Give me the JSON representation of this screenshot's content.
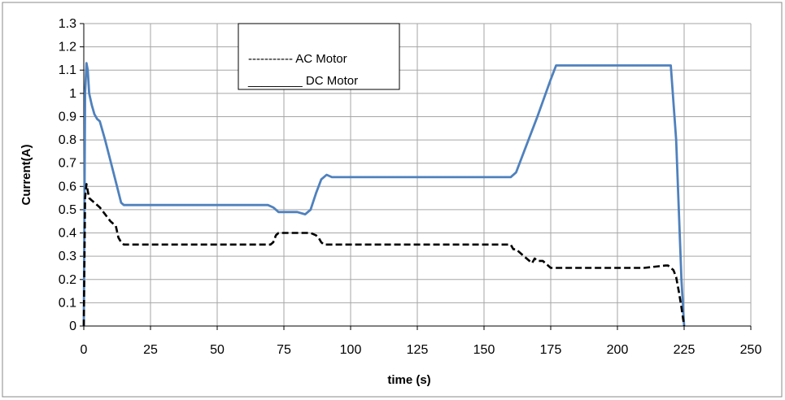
{
  "chart_data": {
    "type": "line",
    "title": "",
    "xlabel": "time (s)",
    "ylabel": "Current(A)",
    "xlim": [
      0,
      250
    ],
    "ylim": [
      0,
      1.3
    ],
    "x_ticks": [
      "0",
      "25",
      "50",
      "75",
      "100",
      "125",
      "150",
      "175",
      "200",
      "225",
      "250"
    ],
    "y_ticks": [
      "0",
      "0.1",
      "0.2",
      "0.3",
      "0.4",
      "0.5",
      "0.6",
      "0.7",
      "0.8",
      "0.9",
      "1",
      "1.1",
      "1.2",
      "1.3"
    ],
    "grid": true,
    "legend_position": "top-center",
    "legend": [
      {
        "sample": "-----------",
        "label": "AC Motor",
        "style": "dashed",
        "color": "#000000"
      },
      {
        "sample": "________",
        "label": "DC Motor",
        "style": "solid",
        "color": "#000000"
      }
    ],
    "series": [
      {
        "style": "solid",
        "color": "#4f81bd",
        "x": [
          0,
          0.5,
          1,
          1.5,
          2,
          3,
          4,
          5,
          6,
          8,
          10,
          12,
          14,
          15,
          20,
          30,
          40,
          50,
          60,
          69,
          71,
          73,
          75,
          80,
          83,
          85,
          87,
          89,
          91,
          93,
          100,
          125,
          150,
          158,
          160,
          162,
          165,
          170,
          175,
          177,
          180,
          200,
          210,
          217,
          219,
          220,
          222,
          224,
          225
        ],
        "y": [
          0,
          1.0,
          1.13,
          1.1,
          1.0,
          0.95,
          0.91,
          0.89,
          0.88,
          0.8,
          0.71,
          0.62,
          0.53,
          0.52,
          0.52,
          0.52,
          0.52,
          0.52,
          0.52,
          0.52,
          0.51,
          0.49,
          0.49,
          0.49,
          0.48,
          0.5,
          0.57,
          0.63,
          0.65,
          0.64,
          0.64,
          0.64,
          0.64,
          0.64,
          0.64,
          0.66,
          0.75,
          0.9,
          1.06,
          1.12,
          1.12,
          1.12,
          1.12,
          1.12,
          1.12,
          1.12,
          0.8,
          0.2,
          0
        ]
      },
      {
        "style": "dashed",
        "color": "#000000",
        "x": [
          0,
          0.5,
          1,
          1.5,
          2,
          3,
          4,
          6,
          8,
          10,
          12,
          13,
          14,
          15,
          20,
          30,
          50,
          70,
          71,
          72,
          73,
          75,
          80,
          85,
          87,
          88,
          89,
          90,
          95,
          100,
          125,
          150,
          160,
          161,
          162,
          165,
          167,
          168,
          169,
          170,
          172,
          173,
          175,
          180,
          200,
          210,
          218,
          219,
          220,
          221,
          222,
          223,
          224,
          225
        ],
        "y": [
          0,
          0.55,
          0.61,
          0.58,
          0.55,
          0.54,
          0.53,
          0.51,
          0.48,
          0.45,
          0.43,
          0.38,
          0.36,
          0.35,
          0.35,
          0.35,
          0.35,
          0.35,
          0.36,
          0.39,
          0.4,
          0.4,
          0.4,
          0.4,
          0.39,
          0.38,
          0.36,
          0.35,
          0.35,
          0.35,
          0.35,
          0.35,
          0.35,
          0.33,
          0.33,
          0.3,
          0.28,
          0.27,
          0.29,
          0.28,
          0.28,
          0.27,
          0.25,
          0.25,
          0.25,
          0.25,
          0.26,
          0.26,
          0.25,
          0.24,
          0.21,
          0.15,
          0.08,
          0
        ]
      }
    ]
  }
}
